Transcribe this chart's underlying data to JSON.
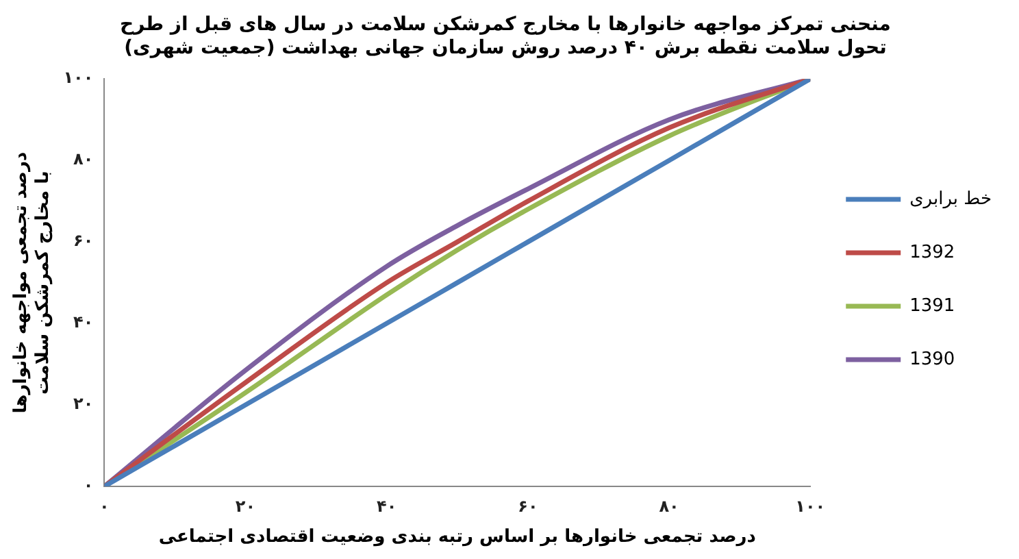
{
  "chart_data": {
    "type": "line",
    "title": "منحنی تمرکز مواجهه خانوارها با مخارج کمرشکن سلامت در سال های قبل از طرح تحول سلامت نقطه برش ۴۰ درصد روش سازمان جهانی بهداشت (جمعیت شهری)",
    "xlabel": "درصد تجمعی خانوارها بر اساس رتبه بندی وضعیت اقتصادی اجتماعی",
    "ylabel": "درصد تجمعی مواجهه خانوارها با مخارج کمرشکن سلامت",
    "x": [
      0,
      20,
      40,
      50,
      60,
      80,
      100
    ],
    "series": [
      {
        "name": "خط برابری",
        "color": "#4a7ebb",
        "values": [
          0,
          20,
          40,
          50,
          60,
          80,
          100
        ]
      },
      {
        "name": "1392",
        "color": "#be4b48",
        "values": [
          0,
          25.5,
          50,
          60,
          70,
          88,
          100
        ]
      },
      {
        "name": "1391",
        "color": "#98b954",
        "values": [
          0,
          23,
          47,
          58,
          68,
          86,
          100
        ]
      },
      {
        "name": "1390",
        "color": "#7d60a0",
        "values": [
          0,
          28.5,
          54,
          64,
          73,
          90,
          100
        ]
      }
    ],
    "xlim": [
      0,
      100
    ],
    "ylim": [
      0,
      100
    ],
    "xticks": [
      {
        "value": 0,
        "label": "۰"
      },
      {
        "value": 20,
        "label": "۲۰"
      },
      {
        "value": 40,
        "label": "۴۰"
      },
      {
        "value": 60,
        "label": "۶۰"
      },
      {
        "value": 80,
        "label": "۸۰"
      },
      {
        "value": 100,
        "label": "۱۰۰"
      }
    ],
    "yticks": [
      {
        "value": 0,
        "label": "۰"
      },
      {
        "value": 20,
        "label": "۲۰"
      },
      {
        "value": 40,
        "label": "۴۰"
      },
      {
        "value": 60,
        "label": "۶۰"
      },
      {
        "value": 80,
        "label": "۸۰"
      },
      {
        "value": 100,
        "label": "۱۰۰"
      }
    ],
    "grid": false,
    "legend": "right",
    "marker": "none",
    "line_style": "solid"
  }
}
